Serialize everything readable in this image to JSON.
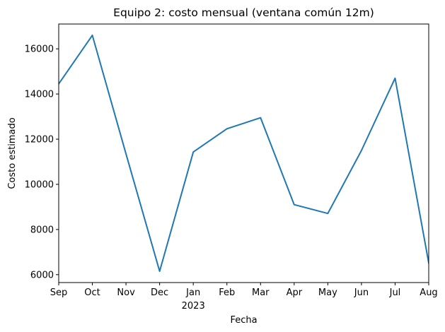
{
  "chart_data": {
    "type": "line",
    "title": "Equipo 2: costo mensual (ventana común 12m)",
    "xlabel": "Fecha",
    "ylabel": "Costo estimado",
    "x": [
      "2022-09",
      "2022-10",
      "2022-11",
      "2022-12",
      "2023-01",
      "2023-02",
      "2023-03",
      "2023-04",
      "2023-05",
      "2023-06",
      "2023-07",
      "2023-08"
    ],
    "x_tick_labels": [
      "Sep",
      "Oct",
      "Nov",
      "Dec",
      "Jan",
      "Feb",
      "Mar",
      "Apr",
      "May",
      "Jun",
      "Jul",
      "Aug"
    ],
    "x_tick_sublabel": "2023",
    "series": [
      {
        "values": [
          14450,
          16600,
          11350,
          6150,
          11430,
          12460,
          12950,
          9100,
          8710,
          11500,
          14700,
          6520
        ],
        "color": "#1f77b4"
      }
    ],
    "ylim": [
      5650,
      17100
    ],
    "yticks": [
      6000,
      8000,
      10000,
      12000,
      14000,
      16000
    ],
    "grid": false,
    "legend": "none"
  }
}
